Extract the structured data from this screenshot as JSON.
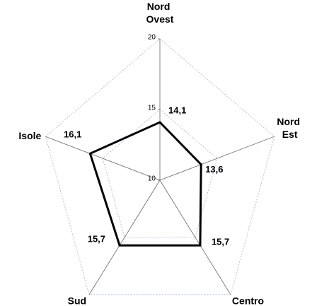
{
  "chart_data": {
    "type": "radar",
    "categories": [
      "Nord Ovest",
      "Nord Est",
      "Centro",
      "Sud",
      "Isole"
    ],
    "values": [
      14.1,
      13.6,
      15.7,
      15.7,
      16.1
    ],
    "value_labels": [
      "14,1",
      "13,6",
      "15,7",
      "15,7",
      "16,1"
    ],
    "color": "#000000",
    "rlim": [
      10,
      20
    ],
    "rticks": [
      10,
      15,
      20
    ],
    "grid": true
  }
}
